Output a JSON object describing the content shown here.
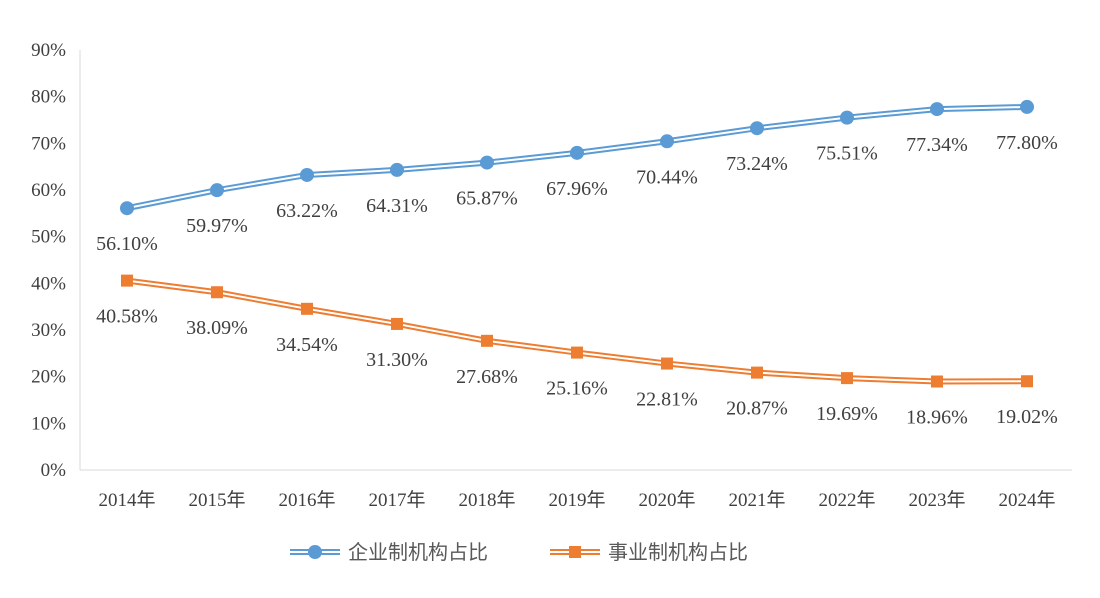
{
  "chart_data": {
    "type": "line",
    "categories": [
      "2014年",
      "2015年",
      "2016年",
      "2017年",
      "2018年",
      "2019年",
      "2020年",
      "2021年",
      "2022年",
      "2023年",
      "2024年"
    ],
    "ylim": [
      0,
      90
    ],
    "yticks": [
      "0%",
      "10%",
      "20%",
      "30%",
      "40%",
      "50%",
      "60%",
      "70%",
      "80%",
      "90%"
    ],
    "grid": false,
    "legend": "bottom",
    "series": [
      {
        "name": "企业制机构占比",
        "color": "#5B9BD5",
        "marker": "circle",
        "values": [
          56.1,
          59.97,
          63.22,
          64.31,
          65.87,
          67.96,
          70.44,
          73.24,
          75.51,
          77.34,
          77.8
        ],
        "labels": [
          "56.10%",
          "59.97%",
          "63.22%",
          "64.31%",
          "65.87%",
          "67.96%",
          "70.44%",
          "73.24%",
          "75.51%",
          "77.34%",
          "77.80%"
        ]
      },
      {
        "name": "事业制机构占比",
        "color": "#ED7D31",
        "marker": "square",
        "values": [
          40.58,
          38.09,
          34.54,
          31.3,
          27.68,
          25.16,
          22.81,
          20.87,
          19.69,
          18.96,
          19.02
        ],
        "labels": [
          "40.58%",
          "38.09%",
          "34.54%",
          "31.30%",
          "27.68%",
          "25.16%",
          "22.81%",
          "20.87%",
          "19.69%",
          "18.96%",
          "19.02%"
        ]
      }
    ]
  }
}
